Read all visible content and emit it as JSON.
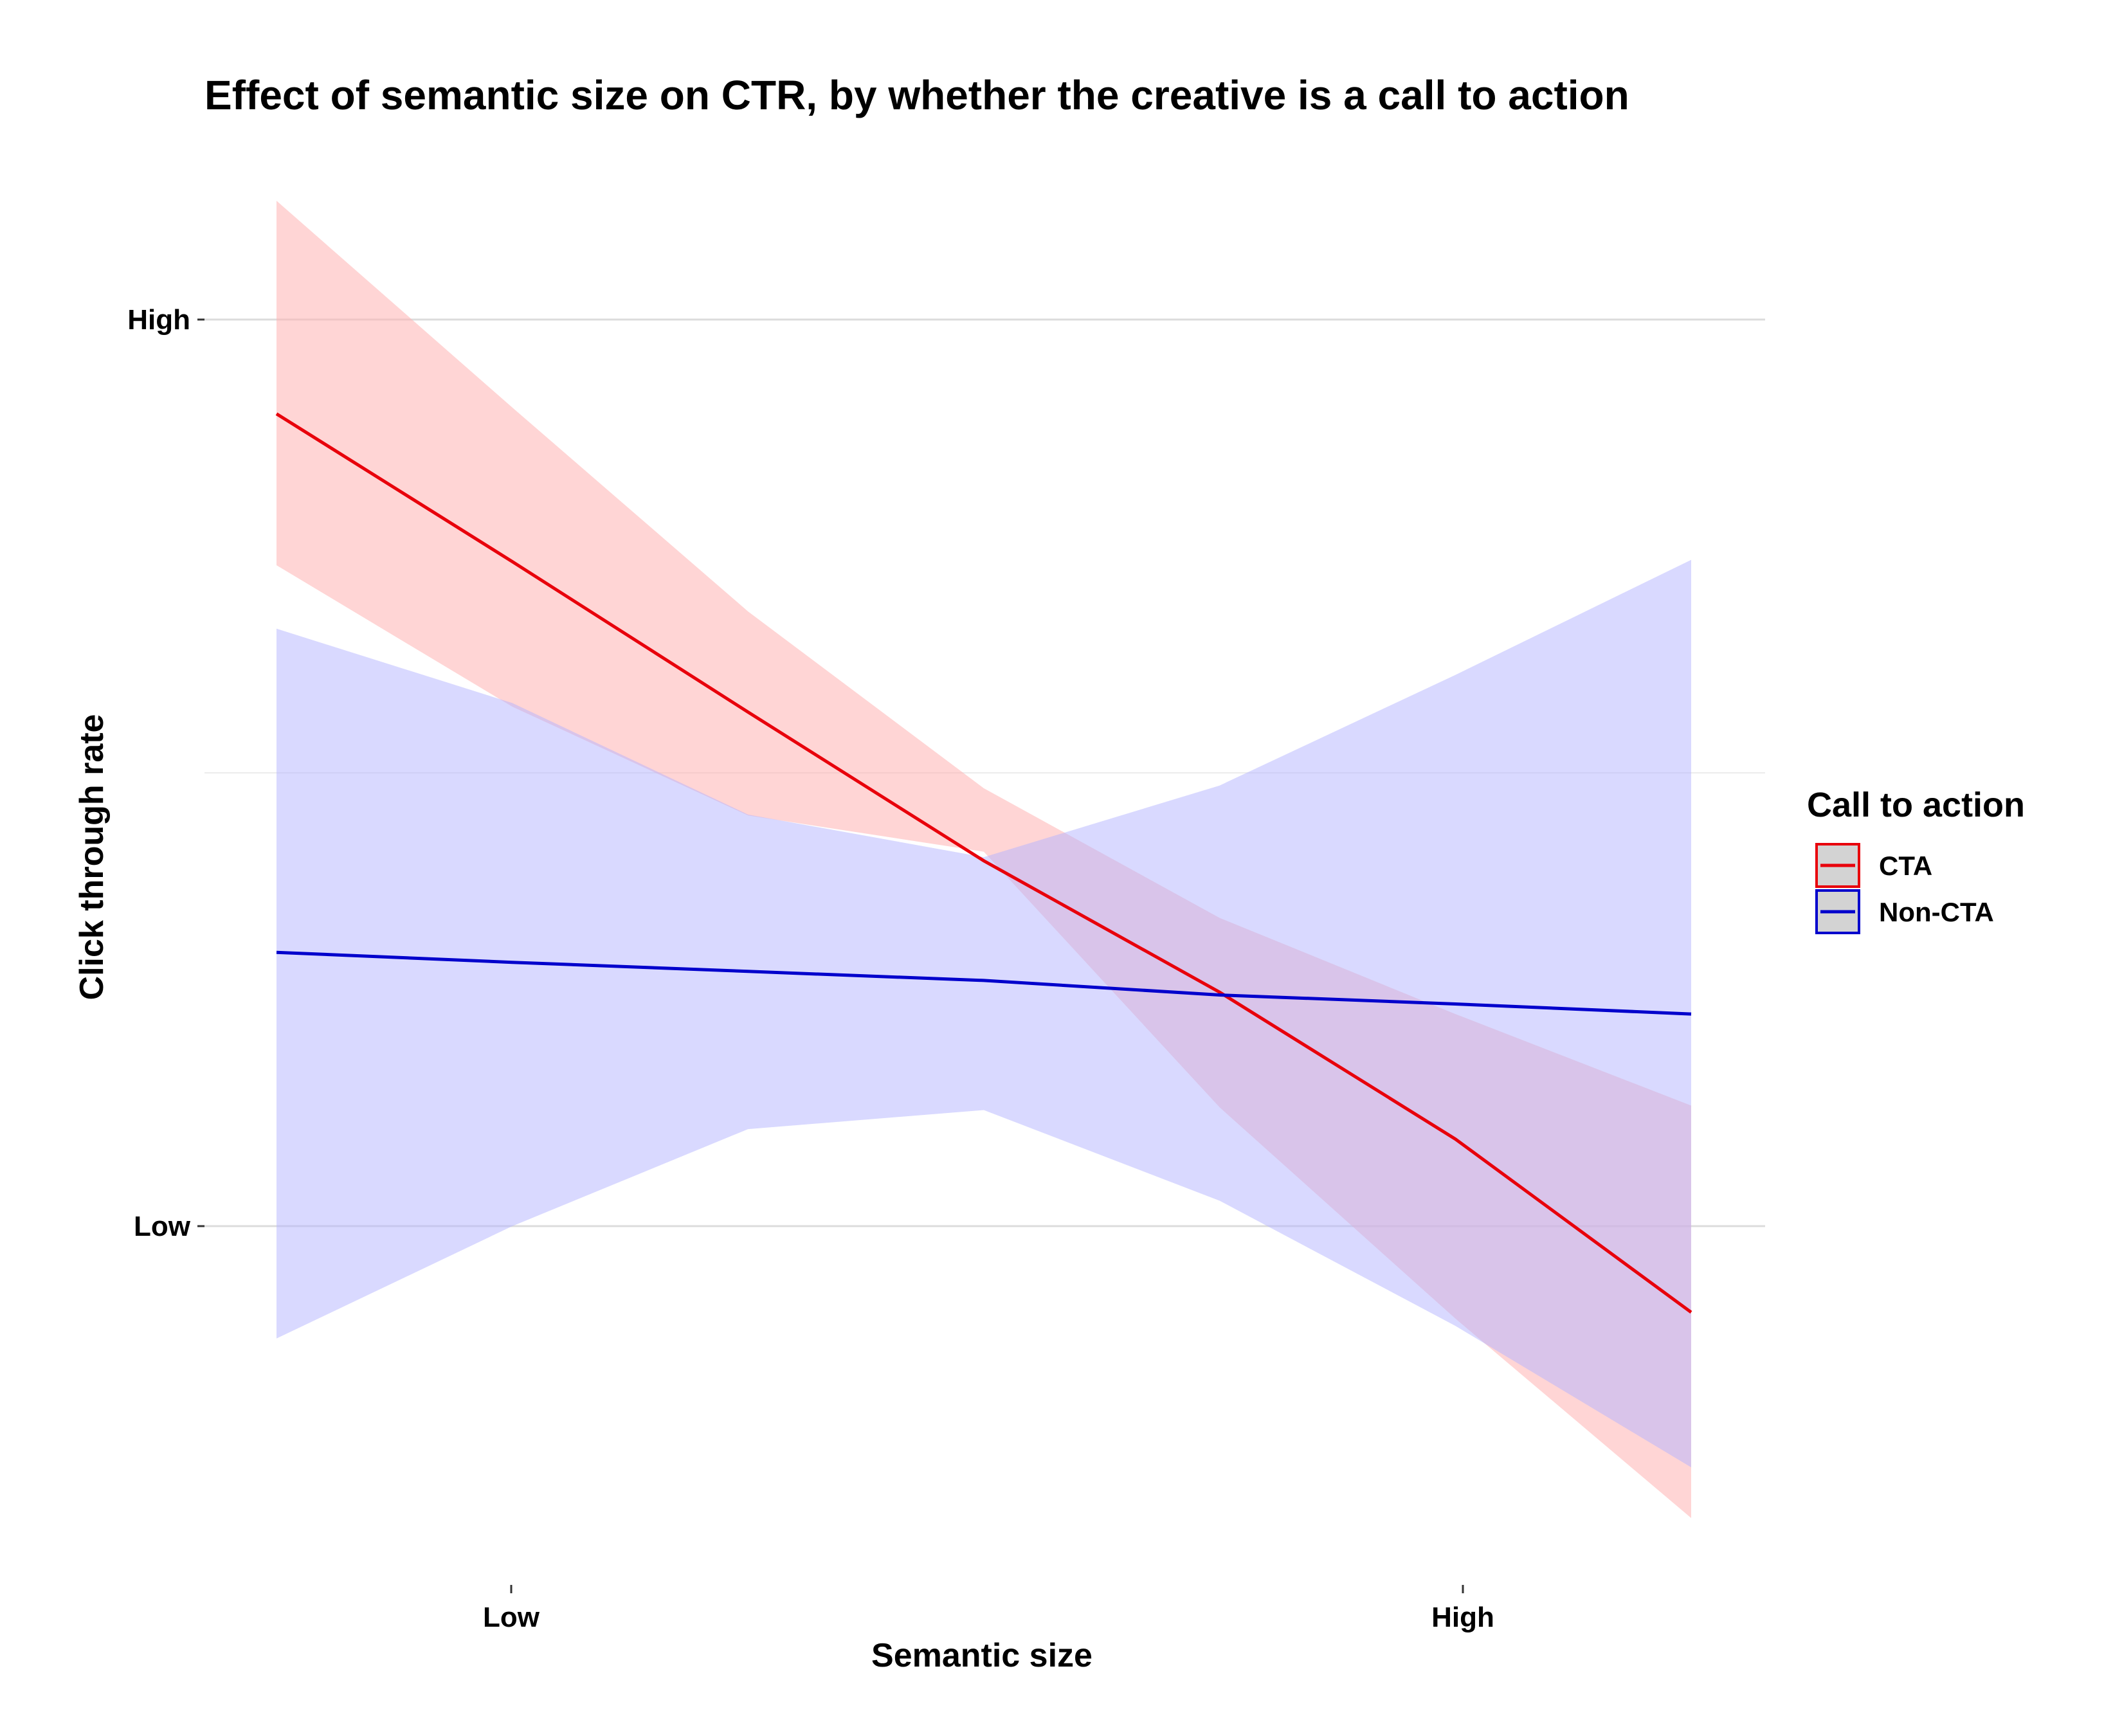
{
  "chart_data": {
    "type": "line",
    "title": "Effect of semantic size on CTR, by whether the creative is a call to action",
    "xlabel": "Semantic size",
    "ylabel": "Click through rate",
    "x_ticks": [
      {
        "label": "Low",
        "value": 1
      },
      {
        "label": "High",
        "value": 5
      }
    ],
    "y_ticks": [
      {
        "label": "Low",
        "value": 0
      },
      {
        "label": "High",
        "value": 1
      }
    ],
    "xlim": [
      0,
      6.5
    ],
    "ylim": [
      -0.4,
      1.5
    ],
    "grid": true,
    "legend": {
      "title": "Call to action",
      "position": "right"
    },
    "series": [
      {
        "name": "CTA",
        "color": "#E8000B",
        "band_color": "#FFB3B3",
        "x": [
          0,
          1,
          2,
          3,
          4,
          5,
          6
        ],
        "y": [
          0.896,
          0.733,
          0.567,
          0.403,
          0.258,
          0.096,
          -0.095
        ],
        "lower": [
          0.729,
          0.573,
          0.453,
          0.413,
          0.131,
          -0.102,
          -0.322
        ],
        "upper": [
          1.131,
          0.903,
          0.678,
          0.483,
          0.34,
          0.234,
          0.133
        ]
      },
      {
        "name": "Non-CTA",
        "color": "#0000CC",
        "band_color": "#B3B3FF",
        "x": [
          0,
          1,
          2,
          3,
          4,
          5,
          6
        ],
        "y": [
          0.302,
          0.291,
          0.281,
          0.271,
          0.255,
          0.245,
          0.234
        ],
        "lower": [
          -0.124,
          0.0,
          0.107,
          0.128,
          0.028,
          -0.11,
          -0.266
        ],
        "upper": [
          0.659,
          0.577,
          0.454,
          0.407,
          0.486,
          0.608,
          0.735
        ]
      }
    ]
  }
}
